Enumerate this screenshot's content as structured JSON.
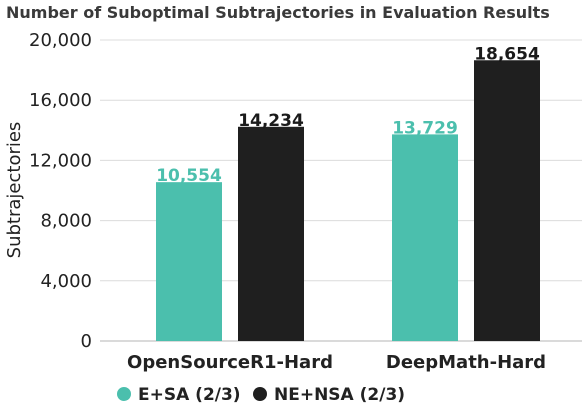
{
  "chart_data": {
    "type": "bar",
    "title": "Number of Suboptimal Subtrajectories in Evaluation Results",
    "xlabel": "",
    "ylabel": "Subtrajectories",
    "categories": [
      "OpenSourceR1-Hard",
      "DeepMath-Hard"
    ],
    "series": [
      {
        "name": "E+SA (2/3)",
        "values": [
          10554,
          13729
        ],
        "color": "#4bbfad",
        "value_labels": [
          "10,554",
          "13,729"
        ]
      },
      {
        "name": "NE+NSA (2/3)",
        "values": [
          14234,
          18654
        ],
        "color": "#1f1f1f",
        "value_labels": [
          "14,234",
          "18,654"
        ]
      }
    ],
    "ylim": [
      0,
      20000
    ],
    "yticks": [
      0,
      4000,
      8000,
      12000,
      16000,
      20000
    ],
    "ytick_labels": [
      "0",
      "4,000",
      "8,000",
      "12,000",
      "16,000",
      "20,000"
    ],
    "grid": true,
    "legend_position": "bottom"
  }
}
